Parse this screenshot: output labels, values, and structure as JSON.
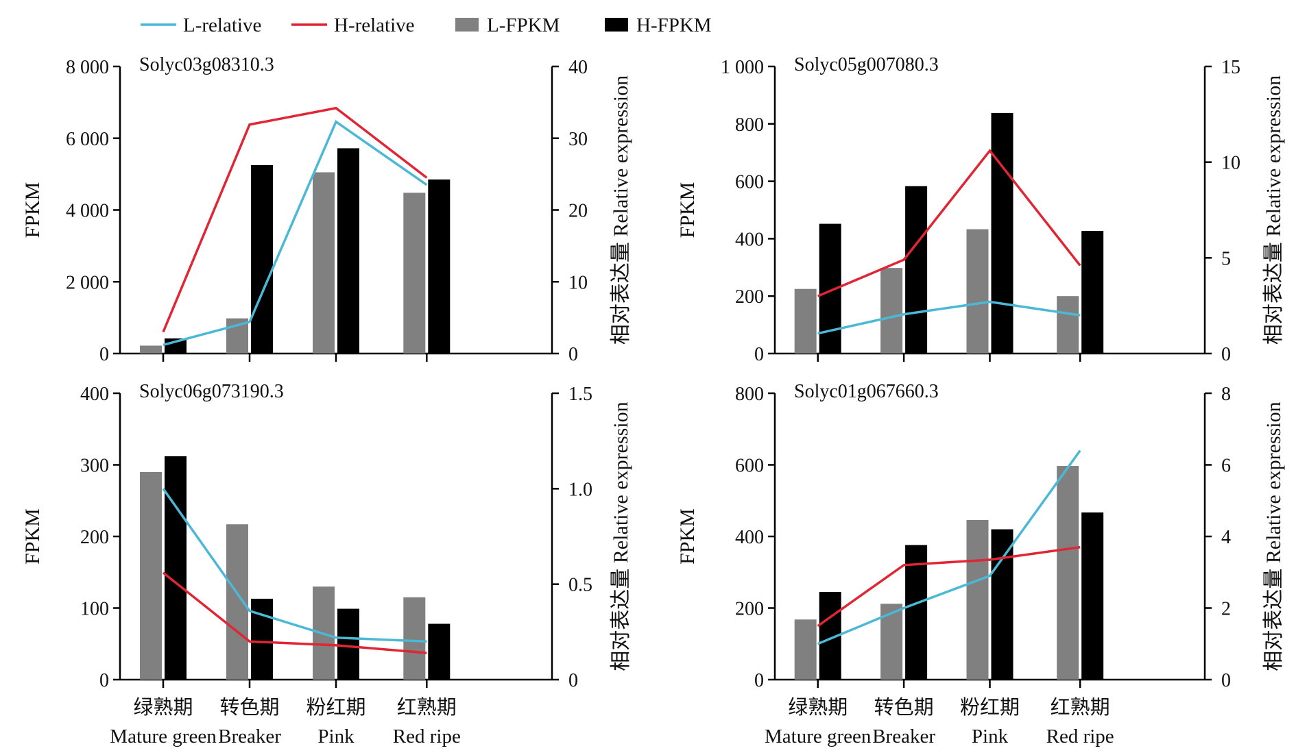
{
  "legend": [
    {
      "label": "L-relative",
      "kind": "line",
      "color": "#4bb8d6"
    },
    {
      "label": "H-relative",
      "kind": "line",
      "color": "#e02535"
    },
    {
      "label": "L-FPKM",
      "kind": "bar",
      "color": "#808080"
    },
    {
      "label": "H-FPKM",
      "kind": "bar",
      "color": "#000000"
    }
  ],
  "categories_cn": [
    "绿熟期",
    "转色期",
    "粉红期",
    "红熟期"
  ],
  "categories_en": [
    "Mature green",
    "Breaker",
    "Pink",
    "Red ripe"
  ],
  "y_left_label": "FPKM",
  "y_right_label": "相对表达量  Relative expression",
  "colors": {
    "L_line": "#4bb8d6",
    "H_line": "#e02535",
    "L_bar": "#808080",
    "H_bar": "#000000"
  },
  "chart_data": [
    {
      "type": "bar",
      "title": "Solyc03g08310.3",
      "categories": [
        "Mature green",
        "Breaker",
        "Pink",
        "Red ripe"
      ],
      "ylim": [
        0,
        8000
      ],
      "ylim_right": [
        0,
        40
      ],
      "yticks": [
        0,
        2000,
        4000,
        6000,
        8000
      ],
      "ytick_labels": [
        "0",
        "2 000",
        "4 000",
        "6 000",
        "8 000"
      ],
      "yticks_right": [
        0,
        10,
        20,
        30,
        40
      ],
      "ytick_right_labels": [
        "0",
        "10",
        "20",
        "30",
        "40"
      ],
      "series": [
        {
          "name": "L-FPKM",
          "type": "bar",
          "axis": "left",
          "values": [
            220,
            980,
            5050,
            4480
          ]
        },
        {
          "name": "H-FPKM",
          "type": "bar",
          "axis": "left",
          "values": [
            420,
            5250,
            5720,
            4850
          ]
        },
        {
          "name": "L-relative",
          "type": "line",
          "axis": "right",
          "values": [
            1.2,
            4.4,
            32.3,
            23.5
          ]
        },
        {
          "name": "H-relative",
          "type": "line",
          "axis": "right",
          "values": [
            3.0,
            31.9,
            34.2,
            24.5
          ]
        }
      ]
    },
    {
      "type": "bar",
      "title": "Solyc05g007080.3",
      "categories": [
        "Mature green",
        "Breaker",
        "Pink",
        "Red ripe"
      ],
      "ylim": [
        0,
        1000
      ],
      "ylim_right": [
        0,
        15
      ],
      "yticks": [
        0,
        200,
        400,
        600,
        800,
        1000
      ],
      "ytick_labels": [
        "0",
        "200",
        "400",
        "600",
        "800",
        "1 000"
      ],
      "yticks_right": [
        0,
        5,
        10,
        15
      ],
      "ytick_right_labels": [
        "0",
        "5",
        "10",
        "15"
      ],
      "series": [
        {
          "name": "L-FPKM",
          "type": "bar",
          "axis": "left",
          "values": [
            225,
            298,
            433,
            200
          ]
        },
        {
          "name": "H-FPKM",
          "type": "bar",
          "axis": "left",
          "values": [
            452,
            583,
            838,
            427
          ]
        },
        {
          "name": "L-relative",
          "type": "line",
          "axis": "right",
          "values": [
            1.05,
            2.05,
            2.7,
            2.0
          ]
        },
        {
          "name": "H-relative",
          "type": "line",
          "axis": "right",
          "values": [
            3.0,
            4.9,
            10.6,
            4.6
          ]
        }
      ]
    },
    {
      "type": "bar",
      "title": "Solyc06g073190.3",
      "categories": [
        "Mature green",
        "Breaker",
        "Pink",
        "Red ripe"
      ],
      "ylim": [
        0,
        400
      ],
      "ylim_right": [
        0,
        1.5
      ],
      "yticks": [
        0,
        100,
        200,
        300,
        400
      ],
      "ytick_labels": [
        "0",
        "100",
        "200",
        "300",
        "400"
      ],
      "yticks_right": [
        0,
        0.5,
        1.0,
        1.5
      ],
      "ytick_right_labels": [
        "0",
        "0.5",
        "1.0",
        "1.5"
      ],
      "series": [
        {
          "name": "L-FPKM",
          "type": "bar",
          "axis": "left",
          "values": [
            290,
            217,
            130,
            115
          ]
        },
        {
          "name": "H-FPKM",
          "type": "bar",
          "axis": "left",
          "values": [
            312,
            113,
            99,
            78
          ]
        },
        {
          "name": "L-relative",
          "type": "line",
          "axis": "right",
          "values": [
            1.0,
            0.36,
            0.22,
            0.2
          ]
        },
        {
          "name": "H-relative",
          "type": "line",
          "axis": "right",
          "values": [
            0.56,
            0.2,
            0.18,
            0.14
          ]
        }
      ]
    },
    {
      "type": "bar",
      "title": "Solyc01g067660.3",
      "categories": [
        "Mature green",
        "Breaker",
        "Pink",
        "Red ripe"
      ],
      "ylim": [
        0,
        800
      ],
      "ylim_right": [
        0,
        8
      ],
      "yticks": [
        0,
        200,
        400,
        600,
        800
      ],
      "ytick_labels": [
        "0",
        "200",
        "400",
        "600",
        "800"
      ],
      "yticks_right": [
        0,
        2,
        4,
        6,
        8
      ],
      "ytick_right_labels": [
        "0",
        "2",
        "4",
        "6",
        "8"
      ],
      "series": [
        {
          "name": "L-FPKM",
          "type": "bar",
          "axis": "left",
          "values": [
            168,
            212,
            446,
            597
          ]
        },
        {
          "name": "H-FPKM",
          "type": "bar",
          "axis": "left",
          "values": [
            245,
            376,
            420,
            467
          ]
        },
        {
          "name": "L-relative",
          "type": "line",
          "axis": "right",
          "values": [
            1.0,
            2.0,
            2.9,
            6.4
          ]
        },
        {
          "name": "H-relative",
          "type": "line",
          "axis": "right",
          "values": [
            1.5,
            3.2,
            3.35,
            3.7
          ]
        }
      ]
    }
  ]
}
